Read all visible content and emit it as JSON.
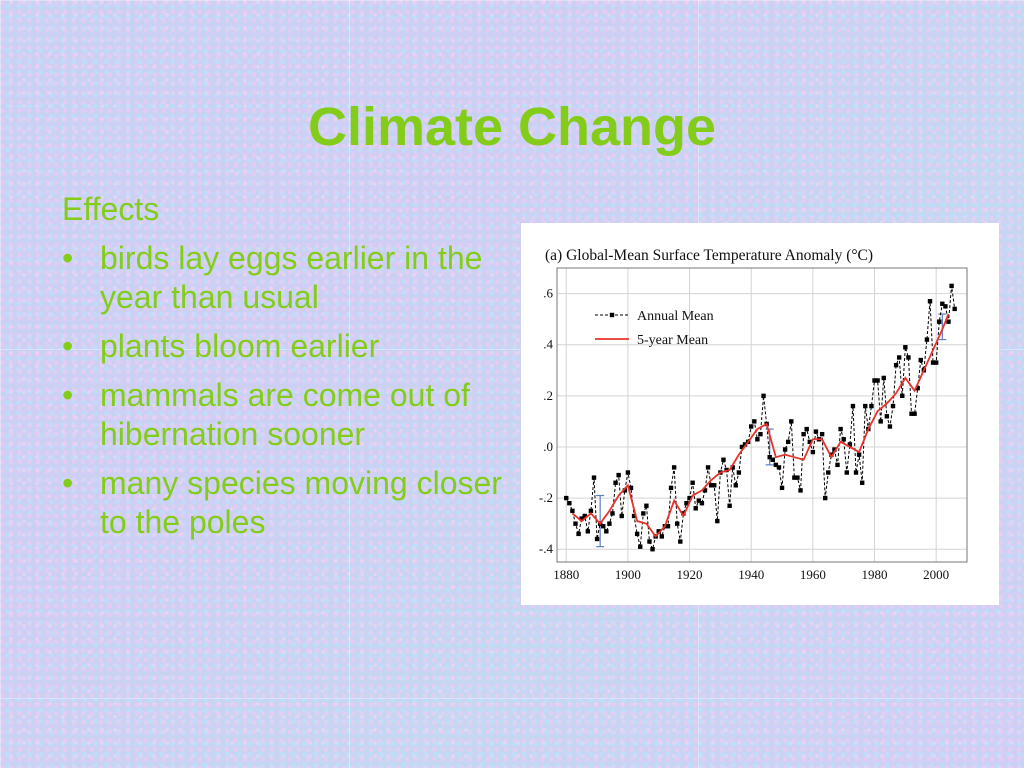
{
  "slide": {
    "title": "Climate Change",
    "effects_heading": "Effects",
    "bullets": [
      "birds lay eggs earlier in the year than usual",
      "plants bloom earlier",
      "mammals are come out of hibernation sooner",
      "many species moving closer to the poles"
    ],
    "bullet_glyph": "•",
    "accent_color": "#84cc1a"
  },
  "chart_data": {
    "type": "line",
    "title": "(a)  Global-Mean Surface Temperature Anomaly (°C)",
    "xlabel": "",
    "ylabel": "",
    "xlim": [
      1877,
      2010
    ],
    "ylim": [
      -0.45,
      0.7
    ],
    "x_ticks": [
      1880,
      1900,
      1920,
      1940,
      1960,
      1980,
      2000
    ],
    "y_ticks": [
      -0.4,
      -0.2,
      0.0,
      0.2,
      0.4,
      0.6
    ],
    "y_tick_labels": [
      "-.4",
      "-.2",
      ".0",
      ".2",
      ".4",
      ".6"
    ],
    "grid": true,
    "legend": "top-left",
    "series": [
      {
        "name": "Annual Mean",
        "color": "#000000",
        "style": "dashed-square-markers",
        "x": [
          1880,
          1881,
          1882,
          1883,
          1884,
          1885,
          1886,
          1887,
          1888,
          1889,
          1890,
          1891,
          1892,
          1893,
          1894,
          1895,
          1896,
          1897,
          1898,
          1899,
          1900,
          1901,
          1902,
          1903,
          1904,
          1905,
          1906,
          1907,
          1908,
          1909,
          1910,
          1911,
          1912,
          1913,
          1914,
          1915,
          1916,
          1917,
          1918,
          1919,
          1920,
          1921,
          1922,
          1923,
          1924,
          1925,
          1926,
          1927,
          1928,
          1929,
          1930,
          1931,
          1932,
          1933,
          1934,
          1935,
          1936,
          1937,
          1938,
          1939,
          1940,
          1941,
          1942,
          1943,
          1944,
          1945,
          1946,
          1947,
          1948,
          1949,
          1950,
          1951,
          1952,
          1953,
          1954,
          1955,
          1956,
          1957,
          1958,
          1959,
          1960,
          1961,
          1962,
          1963,
          1964,
          1965,
          1966,
          1967,
          1968,
          1969,
          1970,
          1971,
          1972,
          1973,
          1974,
          1975,
          1976,
          1977,
          1978,
          1979,
          1980,
          1981,
          1982,
          1983,
          1984,
          1985,
          1986,
          1987,
          1988,
          1989,
          1990,
          1991,
          1992,
          1993,
          1994,
          1995,
          1996,
          1997,
          1998,
          1999,
          2000,
          2001,
          2002,
          2003,
          2004,
          2005,
          2006
        ],
        "values": [
          -0.2,
          -0.22,
          -0.25,
          -0.3,
          -0.34,
          -0.28,
          -0.27,
          -0.33,
          -0.25,
          -0.12,
          -0.36,
          -0.3,
          -0.31,
          -0.33,
          -0.3,
          -0.26,
          -0.14,
          -0.11,
          -0.27,
          -0.17,
          -0.1,
          -0.16,
          -0.27,
          -0.34,
          -0.39,
          -0.26,
          -0.23,
          -0.37,
          -0.4,
          -0.35,
          -0.33,
          -0.35,
          -0.31,
          -0.31,
          -0.16,
          -0.08,
          -0.3,
          -0.37,
          -0.26,
          -0.22,
          -0.2,
          -0.14,
          -0.24,
          -0.21,
          -0.22,
          -0.17,
          -0.08,
          -0.15,
          -0.15,
          -0.29,
          -0.1,
          -0.05,
          -0.09,
          -0.23,
          -0.08,
          -0.15,
          -0.1,
          0.0,
          0.01,
          0.02,
          0.08,
          0.1,
          0.03,
          0.05,
          0.2,
          0.09,
          -0.04,
          -0.05,
          -0.07,
          -0.08,
          -0.16,
          -0.01,
          0.02,
          0.1,
          -0.12,
          -0.12,
          -0.17,
          0.05,
          0.07,
          0.02,
          -0.02,
          0.06,
          0.03,
          0.05,
          -0.2,
          -0.1,
          -0.03,
          -0.01,
          -0.07,
          0.07,
          0.03,
          -0.1,
          0.01,
          0.16,
          -0.1,
          -0.03,
          -0.14,
          0.16,
          0.07,
          0.16,
          0.26,
          0.26,
          0.1,
          0.27,
          0.12,
          0.08,
          0.16,
          0.32,
          0.35,
          0.2,
          0.39,
          0.35,
          0.13,
          0.13,
          0.23,
          0.34,
          0.3,
          0.42,
          0.57,
          0.33,
          0.33,
          0.49,
          0.56,
          0.55,
          0.49,
          0.63,
          0.54
        ]
      },
      {
        "name": "5-year Mean",
        "color": "#e8332c",
        "style": "solid",
        "x": [
          1882,
          1885,
          1888,
          1891,
          1894,
          1897,
          1900,
          1903,
          1906,
          1909,
          1912,
          1915,
          1918,
          1921,
          1924,
          1927,
          1930,
          1933,
          1936,
          1939,
          1942,
          1945,
          1948,
          1951,
          1954,
          1957,
          1960,
          1963,
          1966,
          1969,
          1972,
          1975,
          1978,
          1981,
          1984,
          1987,
          1990,
          1993,
          1996,
          1999,
          2002,
          2004
        ],
        "values": [
          -0.26,
          -0.29,
          -0.26,
          -0.3,
          -0.25,
          -0.19,
          -0.15,
          -0.29,
          -0.3,
          -0.35,
          -0.31,
          -0.21,
          -0.27,
          -0.19,
          -0.17,
          -0.13,
          -0.1,
          -0.09,
          -0.03,
          0.02,
          0.07,
          0.09,
          -0.04,
          -0.03,
          -0.04,
          -0.05,
          0.03,
          0.03,
          -0.04,
          0.02,
          0.0,
          -0.02,
          0.07,
          0.14,
          0.17,
          0.21,
          0.27,
          0.22,
          0.3,
          0.38,
          0.46,
          0.52
        ]
      }
    ],
    "error_bars": [
      {
        "x": 1891,
        "center": -0.29,
        "half_width": 0.1,
        "color": "#5b7fc4"
      },
      {
        "x": 1946,
        "center": 0.0,
        "half_width": 0.07,
        "color": "#5b7fc4"
      },
      {
        "x": 2002,
        "center": 0.47,
        "half_width": 0.05,
        "color": "#5b7fc4"
      }
    ]
  }
}
